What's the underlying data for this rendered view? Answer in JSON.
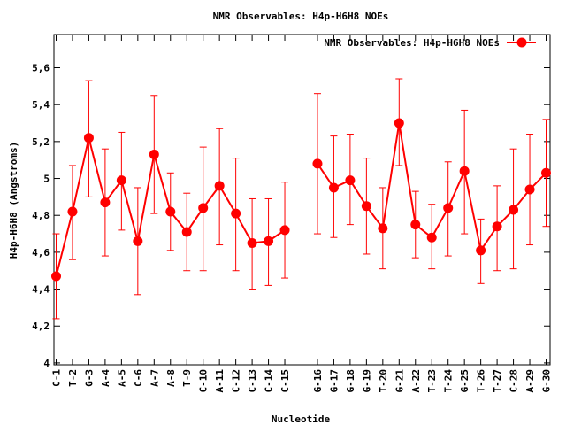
{
  "chart_data": {
    "type": "line",
    "title": "NMR Observables: H4p-H6H8 NOEs",
    "xlabel": "Nucleotide",
    "ylabel": "H4p-H6H8 (Angstroms)",
    "ylim": [
      3.99,
      5.78
    ],
    "yticks": [
      "4",
      "4,2",
      "4,4",
      "4,6",
      "4,8",
      "5",
      "5,2",
      "5,4",
      "5,6"
    ],
    "yticks_values": [
      4.0,
      4.2,
      4.4,
      4.6,
      4.8,
      5.0,
      5.2,
      5.4,
      5.6
    ],
    "grid": false,
    "legend": "top-right",
    "color": "#ff0000",
    "x_index_range": [
      1,
      31
    ],
    "segments": [
      {
        "categories": [
          "C-1",
          "T-2",
          "G-3",
          "A-4",
          "A-5",
          "C-6",
          "A-7",
          "A-8",
          "T-9",
          "C-10",
          "A-11",
          "C-12",
          "C-13",
          "C-14",
          "C-15"
        ],
        "x_index": [
          1,
          2,
          3,
          4,
          5,
          6,
          7,
          8,
          9,
          10,
          11,
          12,
          13,
          14,
          15
        ],
        "values": [
          4.47,
          4.82,
          5.22,
          4.87,
          4.99,
          4.66,
          5.13,
          4.82,
          4.71,
          4.84,
          4.96,
          4.81,
          4.65,
          4.66,
          4.72
        ],
        "err_low": [
          4.24,
          4.56,
          4.9,
          4.58,
          4.72,
          4.37,
          4.81,
          4.61,
          4.5,
          4.5,
          4.64,
          4.5,
          4.4,
          4.42,
          4.46
        ],
        "err_high": [
          4.7,
          5.07,
          5.53,
          5.16,
          5.25,
          4.95,
          5.45,
          5.03,
          4.92,
          5.17,
          5.27,
          5.11,
          4.89,
          4.89,
          4.98
        ]
      },
      {
        "categories": [
          "G-16",
          "G-17",
          "G-18",
          "G-19",
          "T-20",
          "G-21",
          "A-22",
          "T-23",
          "T-24",
          "G-25",
          "T-26",
          "T-27",
          "C-28",
          "A-29",
          "G-30"
        ],
        "x_index": [
          17,
          18,
          19,
          20,
          21,
          22,
          23,
          24,
          25,
          26,
          27,
          28,
          29,
          30,
          31
        ],
        "values": [
          5.08,
          4.95,
          4.99,
          4.85,
          4.73,
          5.3,
          4.75,
          4.68,
          4.84,
          5.04,
          4.61,
          4.74,
          4.83,
          4.94,
          5.03
        ],
        "err_low": [
          4.7,
          4.68,
          4.75,
          4.59,
          4.51,
          5.07,
          4.57,
          4.51,
          4.58,
          4.7,
          4.43,
          4.5,
          4.51,
          4.64,
          4.74
        ],
        "err_high": [
          5.46,
          5.23,
          5.24,
          5.11,
          4.95,
          5.54,
          4.93,
          4.86,
          5.09,
          5.37,
          4.78,
          4.96,
          5.16,
          5.24,
          5.32
        ]
      }
    ],
    "legend_entry": "NMR Observables: H4p-H6H8 NOEs"
  }
}
